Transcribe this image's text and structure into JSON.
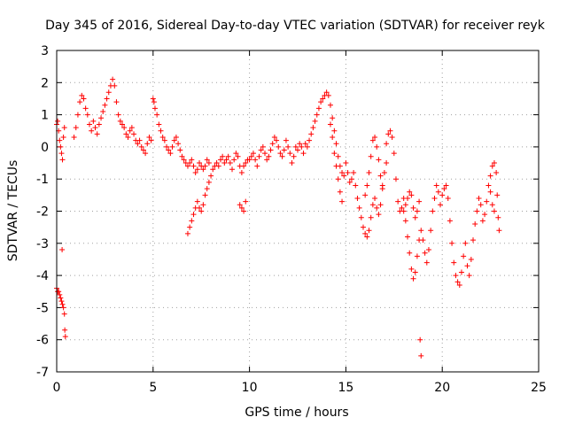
{
  "chart_data": {
    "type": "scatter",
    "title": "Day 345 of 2016, Sidereal Day-to-day VTEC variation (SDTVAR) for receiver reyk",
    "xlabel": "GPS time / hours",
    "ylabel": "SDTVAR / TECUs",
    "xlim": [
      0,
      25
    ],
    "ylim": [
      -7,
      3
    ],
    "xticks": [
      0,
      5,
      10,
      15,
      20,
      25
    ],
    "yticks": [
      -7,
      -6,
      -5,
      -4,
      -3,
      -2,
      -1,
      0,
      1,
      2,
      3
    ],
    "grid": true,
    "marker": "+",
    "series": [
      {
        "name": "SDTVAR",
        "color": "#ff0000",
        "points": [
          [
            0.0,
            0.7
          ],
          [
            0.05,
            0.8
          ],
          [
            0.1,
            0.5
          ],
          [
            0.15,
            0.2
          ],
          [
            0.2,
            0.0
          ],
          [
            0.25,
            -0.2
          ],
          [
            0.3,
            -0.4
          ],
          [
            0.35,
            0.3
          ],
          [
            0.4,
            0.6
          ],
          [
            0.0,
            -4.4
          ],
          [
            0.05,
            -4.5
          ],
          [
            0.1,
            -4.5
          ],
          [
            0.15,
            -4.6
          ],
          [
            0.2,
            -4.7
          ],
          [
            0.25,
            -4.8
          ],
          [
            0.3,
            -4.9
          ],
          [
            0.35,
            -5.0
          ],
          [
            0.4,
            -5.2
          ],
          [
            0.42,
            -5.7
          ],
          [
            0.45,
            -5.9
          ],
          [
            0.28,
            -3.2
          ],
          [
            0.9,
            0.3
          ],
          [
            1.0,
            0.6
          ],
          [
            1.1,
            1.0
          ],
          [
            1.2,
            1.4
          ],
          [
            1.3,
            1.6
          ],
          [
            1.4,
            1.5
          ],
          [
            1.5,
            1.2
          ],
          [
            1.6,
            1.0
          ],
          [
            1.7,
            0.7
          ],
          [
            1.8,
            0.5
          ],
          [
            1.9,
            0.8
          ],
          [
            2.0,
            0.6
          ],
          [
            2.1,
            0.4
          ],
          [
            2.2,
            0.7
          ],
          [
            2.3,
            0.9
          ],
          [
            2.4,
            1.1
          ],
          [
            2.5,
            1.3
          ],
          [
            2.6,
            1.5
          ],
          [
            2.7,
            1.7
          ],
          [
            2.8,
            1.9
          ],
          [
            2.9,
            2.1
          ],
          [
            3.0,
            1.9
          ],
          [
            3.1,
            1.4
          ],
          [
            3.2,
            1.0
          ],
          [
            3.3,
            0.8
          ],
          [
            3.4,
            0.7
          ],
          [
            3.5,
            0.6
          ],
          [
            3.6,
            0.4
          ],
          [
            3.7,
            0.3
          ],
          [
            3.8,
            0.5
          ],
          [
            3.9,
            0.6
          ],
          [
            4.0,
            0.4
          ],
          [
            4.1,
            0.2
          ],
          [
            4.2,
            0.1
          ],
          [
            4.3,
            0.2
          ],
          [
            4.4,
            0.0
          ],
          [
            4.5,
            -0.1
          ],
          [
            4.6,
            -0.2
          ],
          [
            4.7,
            0.1
          ],
          [
            4.8,
            0.3
          ],
          [
            4.9,
            0.2
          ],
          [
            5.0,
            1.5
          ],
          [
            5.05,
            1.4
          ],
          [
            5.1,
            1.2
          ],
          [
            5.2,
            1.0
          ],
          [
            5.3,
            0.7
          ],
          [
            5.4,
            0.5
          ],
          [
            5.5,
            0.3
          ],
          [
            5.6,
            0.2
          ],
          [
            5.7,
            0.0
          ],
          [
            5.8,
            -0.1
          ],
          [
            5.9,
            -0.2
          ],
          [
            6.0,
            0.0
          ],
          [
            6.1,
            0.2
          ],
          [
            6.2,
            0.3
          ],
          [
            6.3,
            0.1
          ],
          [
            6.4,
            -0.1
          ],
          [
            6.5,
            -0.3
          ],
          [
            6.6,
            -0.4
          ],
          [
            6.7,
            -0.5
          ],
          [
            6.8,
            -0.6
          ],
          [
            6.9,
            -0.5
          ],
          [
            7.0,
            -0.4
          ],
          [
            7.1,
            -0.6
          ],
          [
            7.2,
            -0.8
          ],
          [
            7.3,
            -0.7
          ],
          [
            7.4,
            -0.5
          ],
          [
            7.5,
            -0.6
          ],
          [
            7.6,
            -0.7
          ],
          [
            7.7,
            -0.6
          ],
          [
            7.8,
            -0.4
          ],
          [
            7.9,
            -0.5
          ],
          [
            6.8,
            -2.7
          ],
          [
            6.9,
            -2.5
          ],
          [
            7.0,
            -2.3
          ],
          [
            7.1,
            -2.1
          ],
          [
            7.2,
            -1.9
          ],
          [
            7.3,
            -1.7
          ],
          [
            7.4,
            -1.9
          ],
          [
            7.5,
            -2.0
          ],
          [
            7.6,
            -1.8
          ],
          [
            7.7,
            -1.5
          ],
          [
            7.8,
            -1.3
          ],
          [
            7.9,
            -1.1
          ],
          [
            8.0,
            -0.9
          ],
          [
            8.1,
            -0.7
          ],
          [
            8.2,
            -0.6
          ],
          [
            8.3,
            -0.5
          ],
          [
            8.4,
            -0.6
          ],
          [
            8.5,
            -0.4
          ],
          [
            8.6,
            -0.3
          ],
          [
            8.7,
            -0.5
          ],
          [
            8.8,
            -0.4
          ],
          [
            8.9,
            -0.3
          ],
          [
            9.0,
            -0.5
          ],
          [
            9.1,
            -0.7
          ],
          [
            9.2,
            -0.4
          ],
          [
            9.3,
            -0.2
          ],
          [
            9.4,
            -0.3
          ],
          [
            9.5,
            -0.6
          ],
          [
            9.6,
            -0.8
          ],
          [
            9.7,
            -0.6
          ],
          [
            9.8,
            -0.5
          ],
          [
            9.9,
            -0.4
          ],
          [
            9.5,
            -1.8
          ],
          [
            9.6,
            -1.9
          ],
          [
            9.7,
            -2.0
          ],
          [
            9.8,
            -1.7
          ],
          [
            10.0,
            -0.4
          ],
          [
            10.1,
            -0.3
          ],
          [
            10.2,
            -0.2
          ],
          [
            10.3,
            -0.4
          ],
          [
            10.4,
            -0.6
          ],
          [
            10.5,
            -0.3
          ],
          [
            10.6,
            -0.1
          ],
          [
            10.7,
            0.0
          ],
          [
            10.8,
            -0.2
          ],
          [
            10.9,
            -0.4
          ],
          [
            11.0,
            -0.3
          ],
          [
            11.1,
            -0.1
          ],
          [
            11.2,
            0.1
          ],
          [
            11.3,
            0.3
          ],
          [
            11.4,
            0.2
          ],
          [
            11.5,
            0.0
          ],
          [
            11.6,
            -0.2
          ],
          [
            11.7,
            -0.3
          ],
          [
            11.8,
            -0.1
          ],
          [
            11.9,
            0.2
          ],
          [
            12.0,
            0.0
          ],
          [
            12.1,
            -0.2
          ],
          [
            12.2,
            -0.5
          ],
          [
            12.3,
            -0.3
          ],
          [
            12.4,
            0.0
          ],
          [
            12.5,
            -0.1
          ],
          [
            12.6,
            0.1
          ],
          [
            12.7,
            0.0
          ],
          [
            12.8,
            -0.2
          ],
          [
            12.9,
            0.1
          ],
          [
            13.0,
            0.0
          ],
          [
            13.1,
            0.2
          ],
          [
            13.2,
            0.4
          ],
          [
            13.3,
            0.6
          ],
          [
            13.4,
            0.8
          ],
          [
            13.5,
            1.0
          ],
          [
            13.6,
            1.2
          ],
          [
            13.7,
            1.4
          ],
          [
            13.8,
            1.5
          ],
          [
            13.9,
            1.6
          ],
          [
            14.0,
            1.7
          ],
          [
            14.1,
            1.6
          ],
          [
            14.2,
            1.3
          ],
          [
            14.3,
            0.9
          ],
          [
            14.4,
            0.5
          ],
          [
            14.5,
            0.1
          ],
          [
            14.6,
            -0.3
          ],
          [
            14.7,
            -0.6
          ],
          [
            14.8,
            -0.8
          ],
          [
            14.9,
            -0.9
          ],
          [
            14.2,
            0.7
          ],
          [
            14.3,
            0.3
          ],
          [
            14.4,
            -0.2
          ],
          [
            14.5,
            -0.6
          ],
          [
            14.6,
            -1.0
          ],
          [
            14.7,
            -1.4
          ],
          [
            14.8,
            -1.7
          ],
          [
            15.0,
            -0.5
          ],
          [
            15.1,
            -0.8
          ],
          [
            15.2,
            -1.1
          ],
          [
            15.3,
            -1.0
          ],
          [
            15.4,
            -0.8
          ],
          [
            15.5,
            -1.2
          ],
          [
            15.6,
            -1.6
          ],
          [
            15.7,
            -1.9
          ],
          [
            15.8,
            -2.2
          ],
          [
            15.9,
            -2.5
          ],
          [
            16.0,
            -2.7
          ],
          [
            16.1,
            -2.8
          ],
          [
            16.2,
            -2.6
          ],
          [
            16.3,
            -2.2
          ],
          [
            16.4,
            -1.8
          ],
          [
            16.5,
            -1.6
          ],
          [
            16.6,
            -1.9
          ],
          [
            16.7,
            -2.1
          ],
          [
            16.8,
            -1.8
          ],
          [
            16.9,
            -1.2
          ],
          [
            17.0,
            -0.8
          ],
          [
            17.1,
            -0.5
          ],
          [
            16.0,
            -1.5
          ],
          [
            16.1,
            -1.2
          ],
          [
            16.2,
            -0.8
          ],
          [
            16.3,
            -0.3
          ],
          [
            16.4,
            0.2
          ],
          [
            16.5,
            0.3
          ],
          [
            16.6,
            0.0
          ],
          [
            16.7,
            -0.4
          ],
          [
            16.8,
            -0.9
          ],
          [
            16.9,
            -1.3
          ],
          [
            17.1,
            0.1
          ],
          [
            17.2,
            0.4
          ],
          [
            17.3,
            0.5
          ],
          [
            17.4,
            0.3
          ],
          [
            17.5,
            -0.2
          ],
          [
            17.6,
            -1.0
          ],
          [
            17.7,
            -1.7
          ],
          [
            17.8,
            -2.0
          ],
          [
            17.9,
            -1.9
          ],
          [
            18.0,
            -1.6
          ],
          [
            18.0,
            -2.0
          ],
          [
            18.1,
            -2.3
          ],
          [
            18.2,
            -2.8
          ],
          [
            18.3,
            -3.3
          ],
          [
            18.4,
            -3.8
          ],
          [
            18.5,
            -4.1
          ],
          [
            18.6,
            -3.9
          ],
          [
            18.7,
            -3.4
          ],
          [
            18.8,
            -2.9
          ],
          [
            18.9,
            -2.6
          ],
          [
            19.0,
            -2.9
          ],
          [
            19.1,
            -3.3
          ],
          [
            19.2,
            -3.6
          ],
          [
            19.3,
            -3.2
          ],
          [
            19.4,
            -2.6
          ],
          [
            19.5,
            -2.0
          ],
          [
            19.6,
            -1.6
          ],
          [
            19.7,
            -1.2
          ],
          [
            19.8,
            -1.4
          ],
          [
            19.9,
            -1.8
          ],
          [
            18.1,
            -1.8
          ],
          [
            18.2,
            -1.6
          ],
          [
            18.3,
            -1.4
          ],
          [
            18.4,
            -1.5
          ],
          [
            18.5,
            -1.9
          ],
          [
            18.6,
            -2.2
          ],
          [
            18.7,
            -2.0
          ],
          [
            18.8,
            -1.7
          ],
          [
            18.85,
            -6.0
          ],
          [
            18.9,
            -6.5
          ],
          [
            20.0,
            -1.5
          ],
          [
            20.1,
            -1.3
          ],
          [
            20.2,
            -1.2
          ],
          [
            20.3,
            -1.6
          ],
          [
            20.4,
            -2.3
          ],
          [
            20.5,
            -3.0
          ],
          [
            20.6,
            -3.6
          ],
          [
            20.7,
            -4.0
          ],
          [
            20.8,
            -4.2
          ],
          [
            20.9,
            -4.3
          ],
          [
            21.0,
            -3.9
          ],
          [
            21.1,
            -3.4
          ],
          [
            21.2,
            -3.0
          ],
          [
            21.3,
            -3.7
          ],
          [
            21.4,
            -4.0
          ],
          [
            21.5,
            -3.5
          ],
          [
            21.6,
            -2.9
          ],
          [
            21.7,
            -2.4
          ],
          [
            21.8,
            -2.0
          ],
          [
            21.9,
            -1.6
          ],
          [
            22.0,
            -1.8
          ],
          [
            22.1,
            -2.3
          ],
          [
            22.2,
            -2.1
          ],
          [
            22.3,
            -1.7
          ],
          [
            22.4,
            -1.2
          ],
          [
            22.5,
            -0.9
          ],
          [
            22.6,
            -0.6
          ],
          [
            22.7,
            -0.5
          ],
          [
            22.8,
            -0.8
          ],
          [
            22.85,
            -1.5
          ],
          [
            22.9,
            -2.2
          ],
          [
            22.95,
            -2.6
          ],
          [
            22.5,
            -1.4
          ],
          [
            22.6,
            -1.8
          ],
          [
            22.7,
            -2.0
          ]
        ]
      }
    ]
  },
  "colors": {
    "series": "#ff0000",
    "grid": "#a0a0a0",
    "axes": "#000000",
    "background": "#ffffff"
  }
}
